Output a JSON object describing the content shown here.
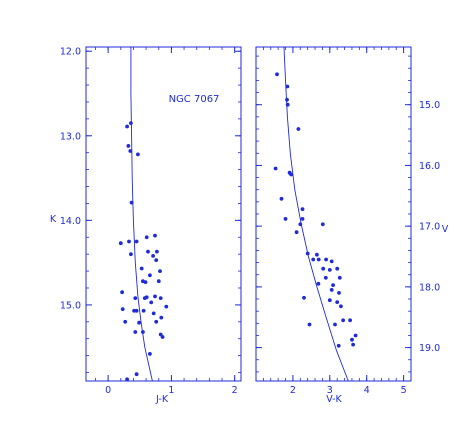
{
  "colors": {
    "ink": "#1f2bd8"
  },
  "chart_data": [
    {
      "type": "scatter",
      "annotation": "NGC 7067",
      "xlabel": "J-K",
      "ylabel": "K",
      "xlim": [
        -0.35,
        2.1
      ],
      "ylim": [
        15.9,
        11.95
      ],
      "y_inverted": true,
      "grid": false,
      "xticks": [
        0,
        1,
        2
      ],
      "yticks": [
        12.0,
        13.0,
        14.0,
        15.0
      ],
      "xtick_labels": [
        "0",
        "1",
        "2"
      ],
      "ytick_labels": [
        "12.0",
        "13.0",
        "14.0",
        "15.0"
      ],
      "points": [
        [
          0.3,
          12.89
        ],
        [
          0.36,
          12.85
        ],
        [
          0.32,
          13.12
        ],
        [
          0.35,
          13.18
        ],
        [
          0.47,
          13.22
        ],
        [
          0.37,
          13.79
        ],
        [
          0.2,
          14.27
        ],
        [
          0.33,
          14.25
        ],
        [
          0.36,
          14.4
        ],
        [
          0.45,
          14.25
        ],
        [
          0.61,
          14.2
        ],
        [
          0.74,
          14.18
        ],
        [
          0.63,
          14.37
        ],
        [
          0.71,
          14.42
        ],
        [
          0.77,
          14.37
        ],
        [
          0.76,
          14.47
        ],
        [
          0.53,
          14.57
        ],
        [
          0.82,
          14.6
        ],
        [
          0.66,
          14.65
        ],
        [
          0.55,
          14.72
        ],
        [
          0.59,
          14.73
        ],
        [
          0.8,
          14.72
        ],
        [
          0.22,
          14.85
        ],
        [
          0.43,
          14.92
        ],
        [
          0.58,
          14.92
        ],
        [
          0.61,
          14.91
        ],
        [
          0.74,
          14.9
        ],
        [
          0.83,
          14.92
        ],
        [
          0.68,
          14.97
        ],
        [
          0.92,
          15.02
        ],
        [
          0.23,
          15.05
        ],
        [
          0.41,
          15.07
        ],
        [
          0.45,
          15.07
        ],
        [
          0.56,
          15.07
        ],
        [
          0.72,
          15.1
        ],
        [
          0.84,
          15.15
        ],
        [
          0.27,
          15.2
        ],
        [
          0.49,
          15.21
        ],
        [
          0.76,
          15.2
        ],
        [
          0.43,
          15.32
        ],
        [
          0.55,
          15.32
        ],
        [
          0.83,
          15.35
        ],
        [
          0.86,
          15.38
        ],
        [
          0.66,
          15.58
        ],
        [
          0.45,
          15.82
        ],
        [
          0.3,
          15.88
        ]
      ],
      "isochrone": {
        "x": [
          0.36,
          0.36,
          0.37,
          0.38,
          0.4,
          0.43,
          0.47,
          0.52,
          0.58,
          0.64,
          0.7
        ],
        "y": [
          11.95,
          12.5,
          13.0,
          13.5,
          14.0,
          14.5,
          14.9,
          15.2,
          15.5,
          15.7,
          15.9
        ]
      }
    },
    {
      "type": "scatter",
      "xlabel": "V-K",
      "ylabel": "V",
      "xlim": [
        1.0,
        5.2
      ],
      "ylim": [
        19.55,
        14.05
      ],
      "y_inverted": true,
      "y_axis_side": "right",
      "grid": false,
      "xticks": [
        2,
        3,
        4,
        5
      ],
      "yticks": [
        15.0,
        16.0,
        17.0,
        18.0,
        19.0
      ],
      "xtick_labels": [
        "2",
        "3",
        "4",
        "5"
      ],
      "ytick_labels": [
        "15.0",
        "16.0",
        "17.0",
        "18.0",
        "19.0"
      ],
      "points": [
        [
          1.57,
          14.5
        ],
        [
          1.85,
          14.7
        ],
        [
          1.84,
          14.92
        ],
        [
          1.86,
          15.0
        ],
        [
          2.15,
          15.4
        ],
        [
          1.53,
          16.05
        ],
        [
          1.91,
          16.12
        ],
        [
          1.95,
          16.15
        ],
        [
          1.69,
          16.55
        ],
        [
          2.26,
          16.72
        ],
        [
          1.8,
          16.88
        ],
        [
          2.26,
          16.88
        ],
        [
          2.2,
          16.97
        ],
        [
          2.1,
          17.1
        ],
        [
          2.81,
          16.97
        ],
        [
          2.4,
          17.45
        ],
        [
          2.65,
          17.47
        ],
        [
          2.55,
          17.55
        ],
        [
          2.7,
          17.55
        ],
        [
          2.9,
          17.55
        ],
        [
          3.05,
          17.58
        ],
        [
          2.82,
          17.7
        ],
        [
          3.0,
          17.72
        ],
        [
          2.89,
          17.85
        ],
        [
          3.2,
          17.7
        ],
        [
          3.27,
          17.85
        ],
        [
          2.69,
          17.95
        ],
        [
          3.09,
          17.97
        ],
        [
          3.05,
          18.05
        ],
        [
          3.25,
          18.1
        ],
        [
          2.3,
          18.18
        ],
        [
          3.0,
          18.22
        ],
        [
          3.2,
          18.25
        ],
        [
          3.3,
          18.32
        ],
        [
          3.36,
          18.55
        ],
        [
          3.55,
          18.55
        ],
        [
          3.14,
          18.62
        ],
        [
          2.45,
          18.62
        ],
        [
          3.7,
          18.8
        ],
        [
          3.6,
          18.87
        ],
        [
          3.63,
          18.95
        ],
        [
          3.24,
          18.97
        ]
      ],
      "isochrone": {
        "x": [
          1.76,
          1.8,
          1.85,
          1.93,
          2.05,
          2.22,
          2.42,
          2.65,
          2.9,
          3.18,
          3.5
        ],
        "y": [
          14.05,
          14.6,
          15.2,
          15.8,
          16.4,
          16.95,
          17.5,
          18.0,
          18.5,
          19.05,
          19.55
        ]
      }
    }
  ]
}
